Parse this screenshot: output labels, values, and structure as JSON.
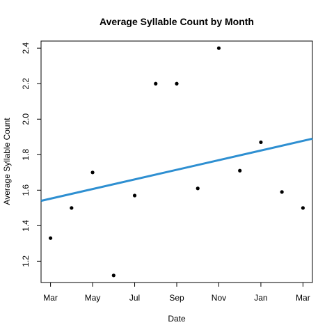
{
  "chart_data": {
    "type": "scatter",
    "title": "Average Syllable Count by Month",
    "xlabel": "Date",
    "ylabel": "Average Syllable Count",
    "x_ticks": [
      "Mar",
      "May",
      "Jul",
      "Sep",
      "Nov",
      "Jan",
      "Mar"
    ],
    "x_tick_positions": [
      0,
      2,
      4,
      6,
      8,
      10,
      12
    ],
    "x_range": [
      -0.45,
      12.45
    ],
    "y_ticks": [
      "1.2",
      "1.4",
      "1.6",
      "1.8",
      "2.0",
      "2.2",
      "2.4"
    ],
    "y_tick_values": [
      1.2,
      1.4,
      1.6,
      1.8,
      2.0,
      2.2,
      2.4
    ],
    "ylim": [
      1.08,
      2.44
    ],
    "points": [
      {
        "x": 0,
        "y": 1.33
      },
      {
        "x": 1,
        "y": 1.5
      },
      {
        "x": 2,
        "y": 1.7
      },
      {
        "x": 3,
        "y": 1.12
      },
      {
        "x": 4,
        "y": 1.57
      },
      {
        "x": 5,
        "y": 2.2
      },
      {
        "x": 6,
        "y": 2.2
      },
      {
        "x": 7,
        "y": 1.61
      },
      {
        "x": 8,
        "y": 2.4
      },
      {
        "x": 9,
        "y": 1.71
      },
      {
        "x": 10,
        "y": 1.87
      },
      {
        "x": 11,
        "y": 1.59
      },
      {
        "x": 12,
        "y": 1.5
      }
    ],
    "trend_line": {
      "x": [
        -0.45,
        12.45
      ],
      "y": [
        1.54,
        1.89
      ]
    },
    "colors": {
      "points": "#000000",
      "trend": "#2E8FD1",
      "axis": "#000000"
    },
    "grid": false,
    "legend": "none"
  }
}
